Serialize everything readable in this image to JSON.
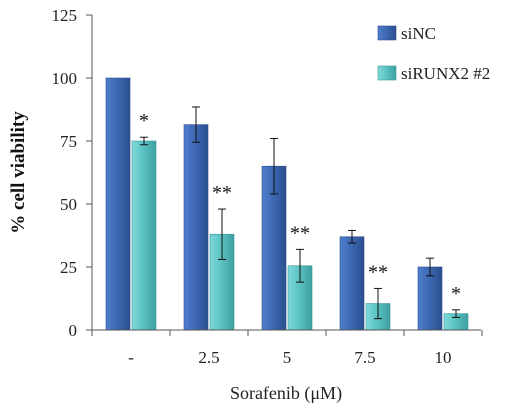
{
  "chart_data": {
    "type": "bar",
    "categories": [
      "-",
      "2.5",
      "5",
      "7.5",
      "10"
    ],
    "series": [
      {
        "name": "siNC",
        "color": "#3d68b3",
        "values": [
          100,
          81.5,
          65,
          37,
          25
        ],
        "errors": [
          0,
          7,
          11,
          2.5,
          3.5
        ],
        "annotations": [
          "",
          "",
          "",
          "",
          ""
        ]
      },
      {
        "name": "siRUNX2 #2",
        "color": "#5cc3c4",
        "values": [
          75,
          38,
          25.5,
          10.5,
          6.5
        ],
        "errors": [
          1.5,
          10,
          6.5,
          6,
          1.5
        ],
        "annotations": [
          "*",
          "**",
          "**",
          "**",
          "*"
        ]
      }
    ],
    "xlabel": "Sorafenib (μM)",
    "ylabel": "% cell viability",
    "ylim": [
      0,
      125
    ],
    "yticks": [
      "0",
      "25",
      "50",
      "75",
      "100",
      "125"
    ],
    "grid": false,
    "legend_position": "top-right"
  }
}
